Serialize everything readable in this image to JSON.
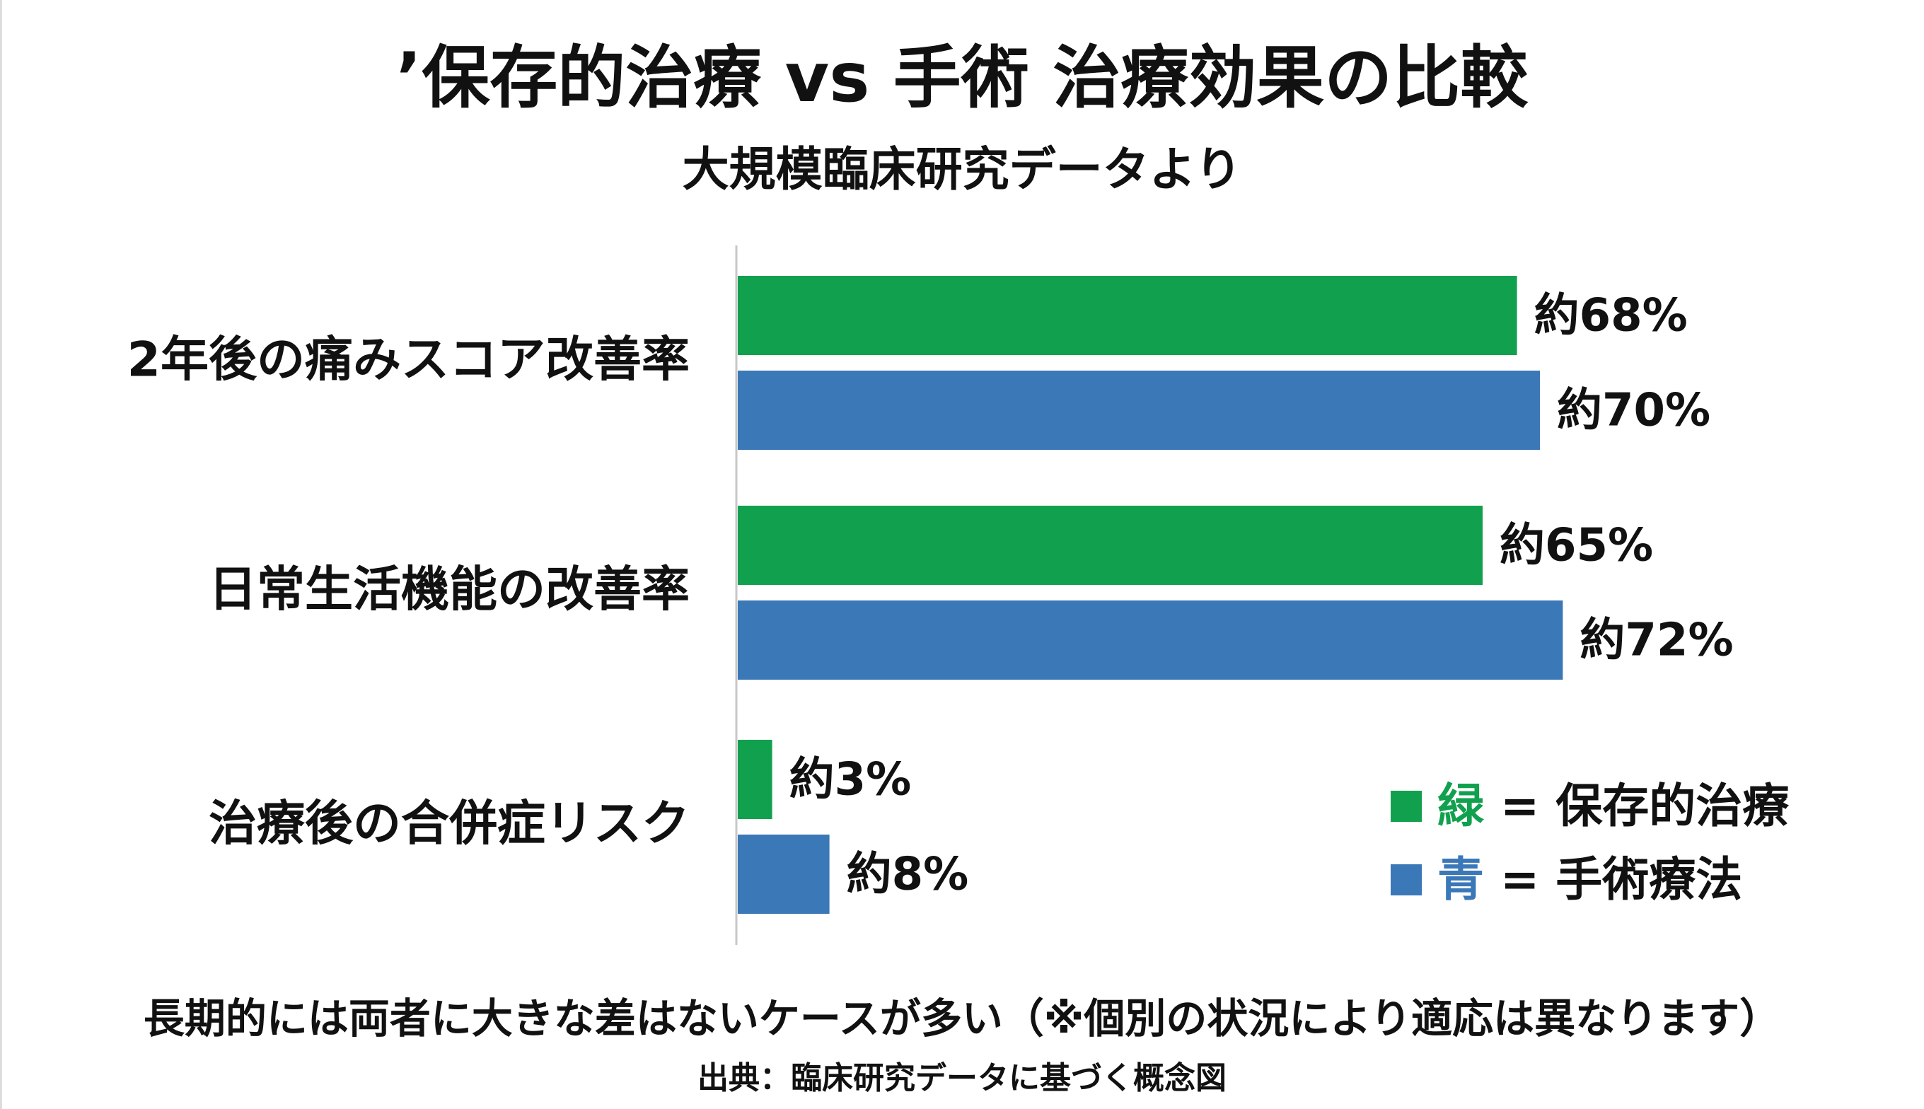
{
  "chart_data": {
    "type": "bar",
    "orientation": "horizontal",
    "title": "’保存的治療 vs 手術 治療効果の比較",
    "subtitle": "大規模臨床研究データより",
    "categories": [
      "2年後の痛みスコア改善率",
      "日常生活機能の改善率",
      "治療後の合併症リスク"
    ],
    "unit": "%",
    "xlim": [
      0,
      100
    ],
    "grid": false,
    "series": [
      {
        "name": "保存的治療",
        "color": "#11a14e",
        "values": [
          68,
          65,
          3
        ],
        "labels": [
          "約68%",
          "約65%",
          "約3%"
        ]
      },
      {
        "name": "手術療法",
        "color": "#3a78b8",
        "values": [
          70,
          72,
          8
        ],
        "labels": [
          "約70%",
          "約72%",
          "約8%"
        ]
      }
    ],
    "legend": {
      "placement": "bottom-right",
      "items": [
        {
          "key": "緑",
          "text": " = 保存的治療",
          "color": "#11a14e"
        },
        {
          "key": "青",
          "text": " = 手術療法",
          "color": "#3a78b8"
        }
      ]
    },
    "footnote": "長期的には両者に大きな差はないケースが多い（※個別の状況により適応は異なります）",
    "source": "出典：臨床研究データに基づく概念図"
  }
}
